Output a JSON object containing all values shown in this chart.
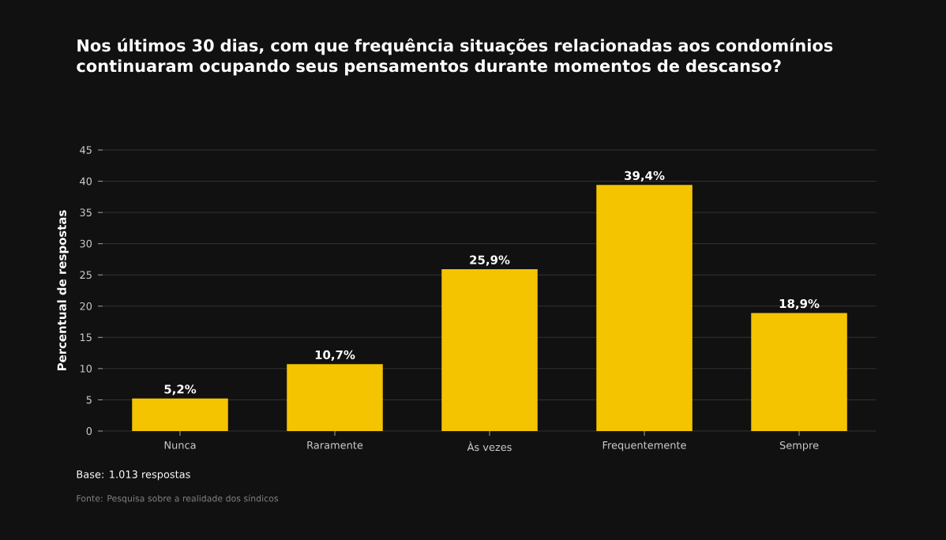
{
  "chart_data": {
    "type": "bar",
    "title": "Nos últimos 30 dias, com que frequência situações relacionadas aos condomínios continuaram ocupando seus pensamentos durante momentos de descanso?",
    "ylabel": "Percentual de respostas",
    "categories": [
      "Nunca",
      "Raramente",
      "Às vezes",
      "Frequentemente",
      "Sempre"
    ],
    "values": [
      5.2,
      10.7,
      25.9,
      39.4,
      18.9
    ],
    "value_labels": [
      "5,2%",
      "10,7%",
      "25,9%",
      "39,4%",
      "18,9%"
    ],
    "color": "#f5c400",
    "ylim": [
      0,
      45
    ],
    "yticks": [
      0,
      5,
      10,
      15,
      20,
      25,
      30,
      35,
      40,
      45
    ],
    "grid": "y",
    "annotations": [
      "Base: 1.013 respostas",
      "Fonte: Pesquisa sobre a realidade dos síndicos"
    ]
  }
}
